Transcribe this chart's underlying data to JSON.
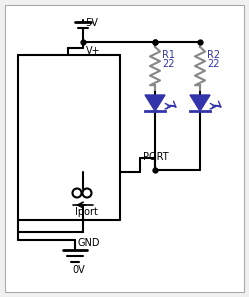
{
  "bg_color": "#f0f0f0",
  "inner_bg": "#ffffff",
  "line_color": "#000000",
  "blue_color": "#3333aa",
  "gray_color": "#888888",
  "supply_label": "5V",
  "vplus_label": "V+",
  "gnd_label": "GND",
  "ov_label": "0V",
  "port_label": "PORT",
  "iport_label": "Iport",
  "r1_label": "R1",
  "r1_val": "22",
  "r2_label": "R2",
  "r2_val": "22"
}
